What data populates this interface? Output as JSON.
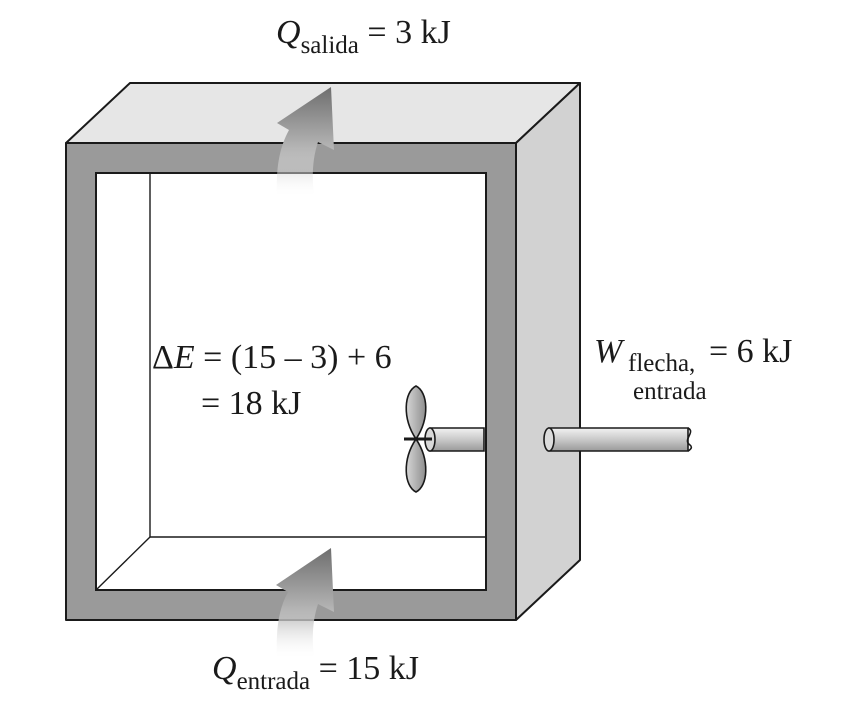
{
  "labels": {
    "q_out": {
      "symbol": "Q",
      "subscript": "salida",
      "rest": " = 3 kJ"
    },
    "q_in": {
      "symbol": "Q",
      "subscript": "entrada",
      "rest": " = 15 kJ"
    },
    "w_shaft": {
      "symbol": "W",
      "subscript_line1": "flecha,",
      "subscript_line2": "entrada",
      "rest": " = 6 kJ"
    },
    "energy_balance": {
      "delta": "Δ",
      "symbol": "E",
      "line1_rest": " = (15 – 3) + 6",
      "line2": "= 18 kJ"
    }
  },
  "colors": {
    "box_front": "#9a9a9a",
    "box_top": "#e6e6e6",
    "box_side": "#d2d2d2",
    "outline": "#1a1a1a",
    "arrow": "#8a8a8a",
    "shaft": "#c8c8c8",
    "paddle": "#a8a8a8"
  }
}
